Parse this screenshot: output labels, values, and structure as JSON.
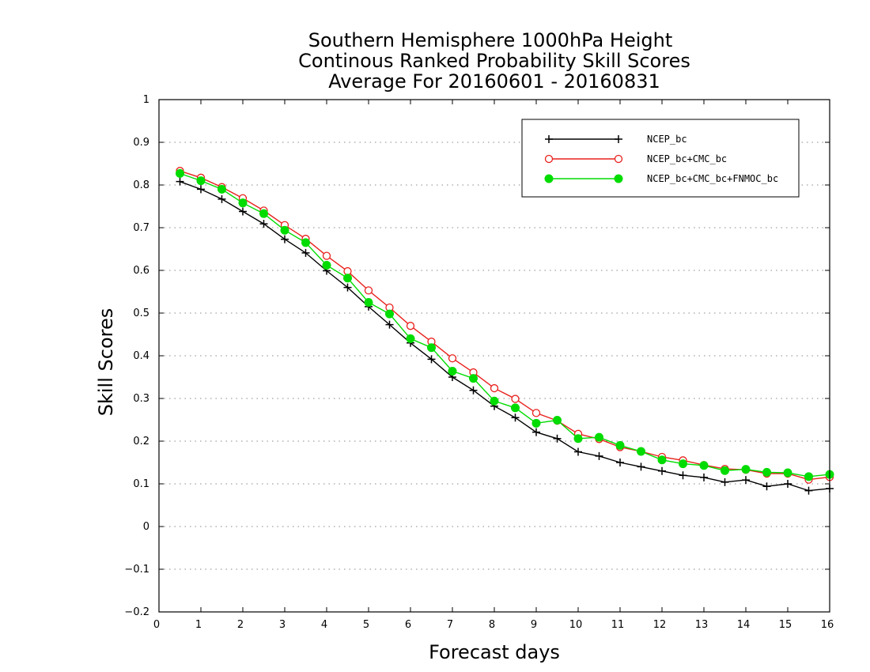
{
  "chart_data": {
    "type": "line",
    "title": [
      "Southern Hemisphere 1000hPa Height",
      "Continous Ranked Probability Skill Scores",
      "Average For 20160601 - 20160831"
    ],
    "xlabel": "Forecast days",
    "ylabel": "Skill Scores",
    "xlim": [
      0,
      16
    ],
    "ylim": [
      -0.2,
      1
    ],
    "xticks": [
      "0",
      "1",
      "2",
      "3",
      "4",
      "5",
      "6",
      "7",
      "8",
      "9",
      "10",
      "11",
      "12",
      "13",
      "14",
      "15",
      "16"
    ],
    "yticks": [
      "−0.2",
      "−0.1",
      "0",
      "0.1",
      "0.2",
      "0.3",
      "0.4",
      "0.5",
      "0.6",
      "0.7",
      "0.8",
      "0.9",
      "1"
    ],
    "grid": "horizontal-dotted",
    "legend_position": "top-right",
    "x": [
      0.5,
      1,
      1.5,
      2,
      2.5,
      3,
      3.5,
      4,
      4.5,
      5,
      5.5,
      6,
      6.5,
      7,
      7.5,
      8,
      8.5,
      9,
      9.5,
      10,
      10.5,
      11,
      11.5,
      12,
      12.5,
      13,
      13.5,
      14,
      14.5,
      15,
      15.5,
      16
    ],
    "series": [
      {
        "name": "NCEP_bc",
        "color": "#000000",
        "marker": "plus",
        "values": [
          0.808,
          0.79,
          0.767,
          0.738,
          0.709,
          0.673,
          0.641,
          0.599,
          0.56,
          0.515,
          0.473,
          0.43,
          0.392,
          0.35,
          0.319,
          0.282,
          0.255,
          0.221,
          0.206,
          0.175,
          0.165,
          0.15,
          0.14,
          0.13,
          0.12,
          0.115,
          0.104,
          0.109,
          0.094,
          0.1,
          0.084,
          0.089
        ]
      },
      {
        "name": "NCEP_bc+CMC_bc",
        "color": "#e8201c",
        "marker": "open-circle",
        "values": [
          0.833,
          0.817,
          0.795,
          0.769,
          0.74,
          0.706,
          0.674,
          0.634,
          0.598,
          0.553,
          0.513,
          0.47,
          0.433,
          0.394,
          0.361,
          0.324,
          0.299,
          0.266,
          0.248,
          0.217,
          0.205,
          0.186,
          0.176,
          0.163,
          0.155,
          0.144,
          0.135,
          0.133,
          0.124,
          0.124,
          0.11,
          0.116
        ]
      },
      {
        "name": "NCEP_bc+CMC_bc+FNMOC_bc",
        "color": "#00dc00",
        "marker": "filled-circle",
        "values": [
          0.827,
          0.81,
          0.79,
          0.758,
          0.733,
          0.694,
          0.665,
          0.612,
          0.582,
          0.525,
          0.498,
          0.44,
          0.419,
          0.364,
          0.347,
          0.294,
          0.278,
          0.242,
          0.249,
          0.206,
          0.209,
          0.19,
          0.176,
          0.156,
          0.147,
          0.143,
          0.131,
          0.134,
          0.127,
          0.126,
          0.117,
          0.122
        ]
      }
    ]
  }
}
